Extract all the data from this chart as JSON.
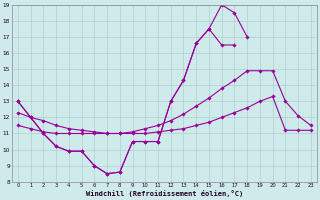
{
  "xlabel": "Windchill (Refroidissement éolien,°C)",
  "background_color": "#ceeaea",
  "grid_color": "#afd0d0",
  "line_color": "#990099",
  "xlim": [
    -0.5,
    23.5
  ],
  "ylim": [
    8,
    19
  ],
  "yticks": [
    8,
    9,
    10,
    11,
    12,
    13,
    14,
    15,
    16,
    17,
    18,
    19
  ],
  "xticks": [
    0,
    1,
    2,
    3,
    4,
    5,
    6,
    7,
    8,
    9,
    10,
    11,
    12,
    13,
    14,
    15,
    16,
    17,
    18,
    19,
    20,
    21,
    22,
    23
  ],
  "curve1_x": [
    0,
    1,
    2,
    3,
    4,
    5,
    6,
    7,
    8,
    9,
    10,
    11,
    12,
    13,
    14,
    15,
    16,
    17,
    18
  ],
  "curve1_y": [
    13.0,
    12.0,
    11.0,
    10.2,
    9.9,
    9.9,
    9.0,
    8.5,
    8.6,
    10.5,
    10.5,
    10.5,
    13.0,
    14.3,
    16.6,
    17.5,
    19.0,
    18.5,
    17.0
  ],
  "curve2_x": [
    0,
    1,
    2,
    3,
    4,
    5,
    6,
    7,
    8,
    9,
    10,
    11,
    12,
    13,
    14,
    15,
    16,
    17
  ],
  "curve2_y": [
    13.0,
    12.0,
    11.0,
    10.2,
    9.9,
    9.9,
    9.0,
    8.5,
    8.6,
    10.5,
    10.5,
    10.5,
    13.0,
    14.3,
    16.6,
    17.5,
    16.5,
    16.5
  ],
  "line3_x": [
    0,
    1,
    2,
    3,
    4,
    5,
    6,
    7,
    8,
    9,
    10,
    11,
    12,
    13,
    14,
    15,
    16,
    17,
    18,
    19,
    20,
    21,
    22,
    23
  ],
  "line3_y": [
    12.3,
    12.0,
    11.8,
    11.5,
    11.3,
    11.2,
    11.1,
    11.0,
    11.0,
    11.1,
    11.3,
    11.5,
    11.8,
    12.2,
    12.7,
    13.2,
    13.8,
    14.3,
    14.9,
    14.9,
    14.9,
    13.0,
    12.1,
    11.5
  ],
  "line4_x": [
    0,
    1,
    2,
    3,
    4,
    5,
    6,
    7,
    8,
    9,
    10,
    11,
    12,
    13,
    14,
    15,
    16,
    17,
    18,
    19,
    20,
    21,
    22,
    23
  ],
  "line4_y": [
    11.5,
    11.3,
    11.1,
    11.0,
    11.0,
    11.0,
    11.0,
    11.0,
    11.0,
    11.0,
    11.0,
    11.1,
    11.2,
    11.3,
    11.5,
    11.7,
    12.0,
    12.3,
    12.6,
    13.0,
    13.3,
    11.2,
    11.2,
    11.2
  ]
}
